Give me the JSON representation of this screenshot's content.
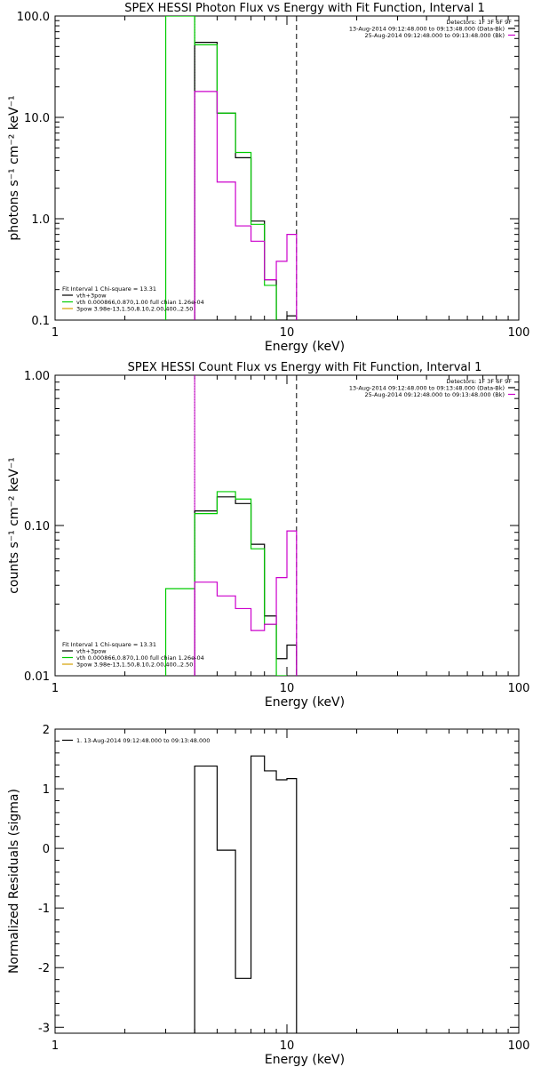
{
  "chart_data": [
    {
      "type": "line",
      "title": "SPEX HESSI Photon Flux vs Energy with Fit Function, Interval 1",
      "xlabel": "Energy (keV)",
      "ylabel": "photons s⁻¹ cm⁻² keV⁻¹",
      "xscale": "log",
      "yscale": "log",
      "xlim": [
        1,
        100
      ],
      "ylim": [
        0.1,
        100
      ],
      "xticks": [
        1,
        10,
        100
      ],
      "xtick_labels": [
        "1",
        "10",
        "100"
      ],
      "yticks": [
        0.1,
        1,
        10,
        100
      ],
      "ytick_labels": [
        "0.1",
        "1.0",
        "10.0",
        "100.0"
      ],
      "edges": [
        3.0,
        4.0,
        5.0,
        6.0,
        7.0,
        8.0,
        9.0,
        10.0,
        11.0
      ],
      "series": [
        {
          "name": "vth+3pow",
          "color": "#000000",
          "values": [
            null,
            55,
            11,
            4.0,
            0.95,
            0.25,
            0.1,
            0.11
          ]
        },
        {
          "name": "vth 0.000866,0.870,1.00 full chian 1.26e-04",
          "color": "#00cc00",
          "values": [
            100,
            52,
            11,
            4.5,
            0.88,
            0.22,
            0.08,
            null
          ]
        },
        {
          "name": "25-Aug-2014 09:12:48.000 to 09:13:48.000 (Bk)",
          "color": "#cc00cc",
          "values": [
            null,
            18,
            2.3,
            0.85,
            0.6,
            0.25,
            0.38,
            0.7
          ]
        }
      ],
      "vlines": [
        {
          "x": 3.0,
          "color": "#00cc00",
          "style": "solid"
        },
        {
          "x": 4.0,
          "color": "#000000",
          "style": "dotted"
        },
        {
          "x": 4.0,
          "color": "#00cc00",
          "style": "solid"
        },
        {
          "x": 4.0,
          "color": "#cc00cc",
          "style": "dotted"
        },
        {
          "x": 11.0,
          "color": "#000000",
          "style": "dashed"
        }
      ],
      "header_lines": [
        "Detectors: 1F 3F 6F 9F",
        "13-Aug-2014 09:12:48.000 to 09:13:48.000 (Data-Bk)",
        "25-Aug-2014 09:12:48.000 to 09:13:48.000 (Bk)"
      ],
      "header_colors": [
        "",
        "#000000",
        "#cc00cc"
      ],
      "legend_lines": [
        "Fit Interval 1    Chi-square = 13.31",
        "vth+3pow",
        "vth 0.000866,0.870,1.00  full chian 1.26e-04",
        "3pow 3.98e-13,1.50,8.10,2.00,400.,2.50"
      ],
      "legend_colors": [
        "",
        "#000000",
        "#00cc00",
        "#d4a000"
      ]
    },
    {
      "type": "line",
      "title": "SPEX HESSI Count Flux vs Energy with Fit Function, Interval 1",
      "xlabel": "Energy (keV)",
      "ylabel": "counts s⁻¹ cm⁻² keV⁻¹",
      "xscale": "log",
      "yscale": "log",
      "xlim": [
        1,
        100
      ],
      "ylim": [
        0.01,
        1
      ],
      "xticks": [
        1,
        10,
        100
      ],
      "xtick_labels": [
        "1",
        "10",
        "100"
      ],
      "yticks": [
        0.01,
        0.1,
        1
      ],
      "ytick_labels": [
        "0.01",
        "0.10",
        "1.00"
      ],
      "edges": [
        3.0,
        4.0,
        5.0,
        6.0,
        7.0,
        8.0,
        9.0,
        10.0,
        11.0
      ],
      "series": [
        {
          "name": "vth+3pow",
          "color": "#000000",
          "values": [
            null,
            0.125,
            0.155,
            0.14,
            0.075,
            0.025,
            0.013,
            0.016
          ]
        },
        {
          "name": "vth 0.000866,0.870,1.00 full chian 1.26e-04",
          "color": "#00cc00",
          "values": [
            0.038,
            0.12,
            0.168,
            0.15,
            0.07,
            0.022,
            0.01,
            null
          ]
        },
        {
          "name": "25-Aug-2014 09:12:48.000 to 09:13:48.000 (Bk)",
          "color": "#cc00cc",
          "values": [
            null,
            0.042,
            0.034,
            0.028,
            0.02,
            0.022,
            0.045,
            0.092
          ]
        }
      ],
      "vlines": [
        {
          "x": 4.0,
          "color": "#000000",
          "style": "dotted"
        },
        {
          "x": 4.0,
          "color": "#cc00cc",
          "style": "solid"
        },
        {
          "x": 11.0,
          "color": "#000000",
          "style": "dashed"
        }
      ],
      "header_lines": [
        "Detectors: 1F 3F 6F 9F",
        "13-Aug-2014 09:12:48.000 to 09:13:48.000 (Data-Bk)",
        "25-Aug-2014 09:12:48.000 to 09:13:48.000 (Bk)"
      ],
      "header_colors": [
        "",
        "#000000",
        "#cc00cc"
      ],
      "legend_lines": [
        "Fit Interval 1    Chi-square = 13.31",
        "vth+3pow",
        "vth 0.000866,0.870,1.00  full chian 1.26e-04",
        "3pow 3.98e-13,1.50,8.10,2.00,400.,2.50"
      ],
      "legend_colors": [
        "",
        "#000000",
        "#00cc00",
        "#d4a000"
      ]
    },
    {
      "type": "line",
      "title": "",
      "xlabel": "Energy (keV)",
      "ylabel": "Normalized Residuals (sigma)",
      "xscale": "log",
      "yscale": "linear",
      "xlim": [
        1,
        100
      ],
      "ylim": [
        -3.1,
        2
      ],
      "xticks": [
        1,
        10,
        100
      ],
      "xtick_labels": [
        "1",
        "10",
        "100"
      ],
      "yticks": [
        -3,
        -2,
        -1,
        0,
        1,
        2
      ],
      "ytick_labels": [
        "-3",
        "-2",
        "-1",
        "0",
        "1",
        "2"
      ],
      "edges": [
        4.0,
        5.0,
        6.0,
        7.0,
        8.0,
        9.0,
        10.0,
        11.0
      ],
      "series": [
        {
          "name": "1. 13-Aug-2014 09:12:48.000 to 09:13:48.000",
          "color": "#000000",
          "values": [
            1.38,
            -0.03,
            -2.18,
            1.55,
            1.3,
            1.15,
            1.17
          ]
        }
      ],
      "vlines": [],
      "header_lines": [],
      "header_colors": [],
      "legend_lines": [
        "1. 13-Aug-2014 09:12:48.000 to 09:13:48.000"
      ],
      "legend_colors": [
        "#000000"
      ]
    }
  ]
}
